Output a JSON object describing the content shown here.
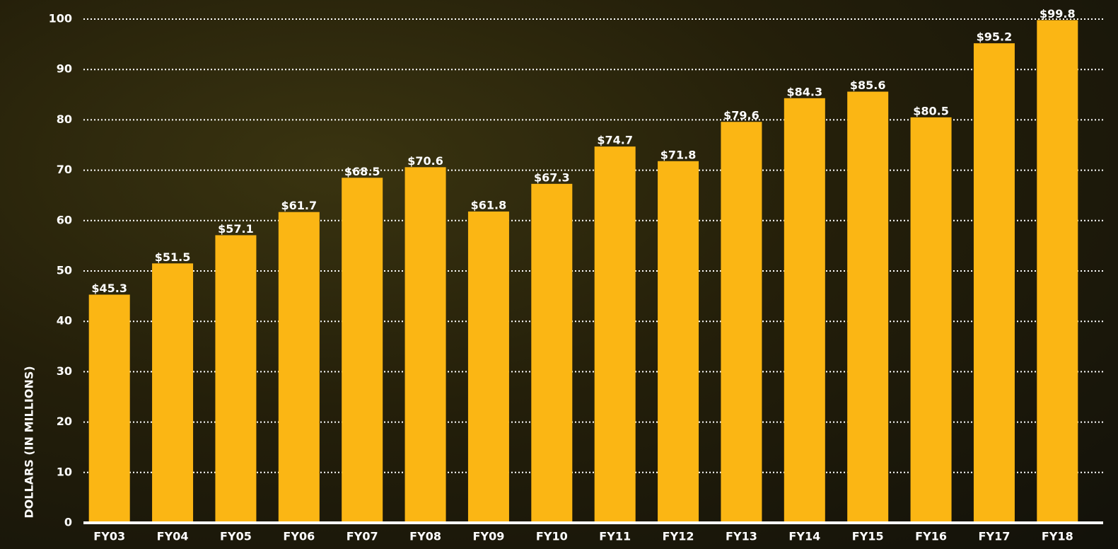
{
  "chart_data": {
    "type": "bar",
    "y_axis_label": "DOLLARS (IN MILLIONS)",
    "categories": [
      "FY03",
      "FY04",
      "FY05",
      "FY06",
      "FY07",
      "FY08",
      "FY09",
      "FY10",
      "FY11",
      "FY12",
      "FY13",
      "FY14",
      "FY15",
      "FY16",
      "FY17",
      "FY18"
    ],
    "values": [
      45.3,
      51.5,
      57.1,
      61.7,
      68.5,
      70.6,
      61.8,
      67.3,
      74.7,
      71.8,
      79.6,
      84.3,
      85.6,
      80.5,
      95.2,
      99.8
    ],
    "value_labels": [
      "$45.3",
      "$51.5",
      "$57.1",
      "$61.7",
      "$68.5",
      "$70.6",
      "$61.8",
      "$67.3",
      "$74.7",
      "$71.8",
      "$79.6",
      "$84.3",
      "$85.6",
      "$80.5",
      "$95.2",
      "$99.8"
    ],
    "color": "#fbb614",
    "ylim": [
      0,
      100
    ],
    "yticks": [
      0,
      10,
      20,
      30,
      40,
      50,
      60,
      70,
      80,
      90,
      100
    ],
    "grid": true
  }
}
